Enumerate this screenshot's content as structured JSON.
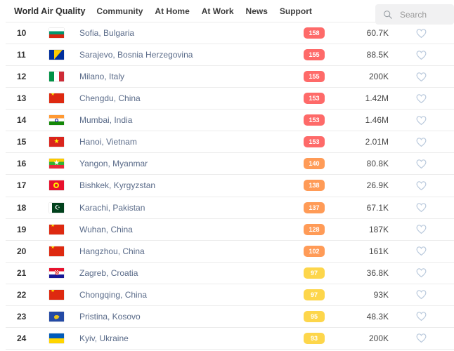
{
  "header": {
    "brand": "World Air Quality",
    "nav": [
      "Community",
      "At Home",
      "At Work",
      "News",
      "Support"
    ],
    "search": {
      "placeholder": "Search"
    }
  },
  "colors": {
    "aqi_unhealthy": "#fe6a69",
    "aqi_unhealthy_sensitive": "#ff9b57",
    "aqi_moderate": "#fdd64b",
    "heart_outline": "#b9c9dc",
    "city_text": "#5a6b89",
    "row_border": "#ececec"
  },
  "table": {
    "rows": [
      {
        "rank": "10",
        "city": "Sofia, Bulgaria",
        "flag": "bulgaria",
        "aqi": "158",
        "level": "aqi_unhealthy",
        "followers": "60.7K"
      },
      {
        "rank": "11",
        "city": "Sarajevo, Bosnia Herzegovina",
        "flag": "bosnia",
        "aqi": "155",
        "level": "aqi_unhealthy",
        "followers": "88.5K"
      },
      {
        "rank": "12",
        "city": "Milano, Italy",
        "flag": "italy",
        "aqi": "155",
        "level": "aqi_unhealthy",
        "followers": "200K"
      },
      {
        "rank": "13",
        "city": "Chengdu, China",
        "flag": "china",
        "aqi": "153",
        "level": "aqi_unhealthy",
        "followers": "1.42M"
      },
      {
        "rank": "14",
        "city": "Mumbai, India",
        "flag": "india",
        "aqi": "153",
        "level": "aqi_unhealthy",
        "followers": "1.46M"
      },
      {
        "rank": "15",
        "city": "Hanoi, Vietnam",
        "flag": "vietnam",
        "aqi": "153",
        "level": "aqi_unhealthy",
        "followers": "2.01M"
      },
      {
        "rank": "16",
        "city": "Yangon, Myanmar",
        "flag": "myanmar",
        "aqi": "140",
        "level": "aqi_unhealthy_sensitive",
        "followers": "80.8K"
      },
      {
        "rank": "17",
        "city": "Bishkek, Kyrgyzstan",
        "flag": "kyrgyzstan",
        "aqi": "138",
        "level": "aqi_unhealthy_sensitive",
        "followers": "26.9K"
      },
      {
        "rank": "18",
        "city": "Karachi, Pakistan",
        "flag": "pakistan",
        "aqi": "137",
        "level": "aqi_unhealthy_sensitive",
        "followers": "67.1K"
      },
      {
        "rank": "19",
        "city": "Wuhan, China",
        "flag": "china",
        "aqi": "128",
        "level": "aqi_unhealthy_sensitive",
        "followers": "187K"
      },
      {
        "rank": "20",
        "city": "Hangzhou, China",
        "flag": "china",
        "aqi": "102",
        "level": "aqi_unhealthy_sensitive",
        "followers": "161K"
      },
      {
        "rank": "21",
        "city": "Zagreb, Croatia",
        "flag": "croatia",
        "aqi": "97",
        "level": "aqi_moderate",
        "followers": "36.8K"
      },
      {
        "rank": "22",
        "city": "Chongqing, China",
        "flag": "china",
        "aqi": "97",
        "level": "aqi_moderate",
        "followers": "93K"
      },
      {
        "rank": "23",
        "city": "Pristina, Kosovo",
        "flag": "kosovo",
        "aqi": "95",
        "level": "aqi_moderate",
        "followers": "48.3K"
      },
      {
        "rank": "24",
        "city": "Kyiv, Ukraine",
        "flag": "ukraine",
        "aqi": "93",
        "level": "aqi_moderate",
        "followers": "200K"
      }
    ]
  }
}
